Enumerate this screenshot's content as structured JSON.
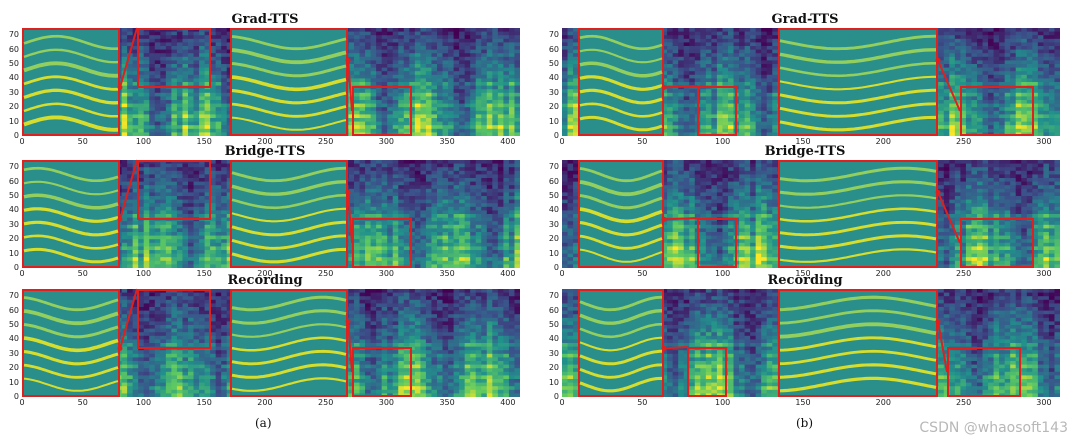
{
  "figure": {
    "caption_a": "(a)",
    "caption_b": "(b)",
    "watermark": "CSDN @whaosoft143"
  },
  "colors": {
    "accent_red": "#e01f1f",
    "viridis_dark": "#2b2f7a",
    "viridis_mid": "#2a8f8a",
    "viridis_bright": "#e8e624"
  },
  "panels": [
    {
      "id": "a",
      "rows": [
        {
          "title": "Grad-TTS",
          "xticks": [
            "0",
            "50",
            "100",
            "150",
            "200",
            "250",
            "300",
            "350",
            "400"
          ],
          "yticks": [
            "0",
            "10",
            "20",
            "30",
            "40",
            "50",
            "60",
            "70"
          ]
        },
        {
          "title": "Bridge-TTS",
          "xticks": [
            "0",
            "50",
            "100",
            "150",
            "200",
            "250",
            "300",
            "350",
            "400"
          ],
          "yticks": [
            "0",
            "10",
            "20",
            "30",
            "40",
            "50",
            "60",
            "70"
          ]
        },
        {
          "title": "Recording",
          "xticks": [
            "0",
            "50",
            "100",
            "150",
            "200",
            "250",
            "300",
            "350",
            "400"
          ],
          "yticks": [
            "0",
            "10",
            "20",
            "30",
            "40",
            "50",
            "60",
            "70"
          ]
        }
      ]
    },
    {
      "id": "b",
      "rows": [
        {
          "title": "Grad-TTS",
          "xticks": [
            "0",
            "50",
            "100",
            "150",
            "200",
            "250",
            "300"
          ],
          "yticks": [
            "0",
            "10",
            "20",
            "30",
            "40",
            "50",
            "60",
            "70"
          ]
        },
        {
          "title": "Bridge-TTS",
          "xticks": [
            "0",
            "50",
            "100",
            "150",
            "200",
            "250",
            "300"
          ],
          "yticks": [
            "0",
            "10",
            "20",
            "30",
            "40",
            "50",
            "60",
            "70"
          ]
        },
        {
          "title": "Recording",
          "xticks": [
            "0",
            "50",
            "100",
            "150",
            "200",
            "250",
            "300"
          ],
          "yticks": [
            "0",
            "10",
            "20",
            "30",
            "40",
            "50",
            "60",
            "70"
          ]
        }
      ]
    }
  ]
}
